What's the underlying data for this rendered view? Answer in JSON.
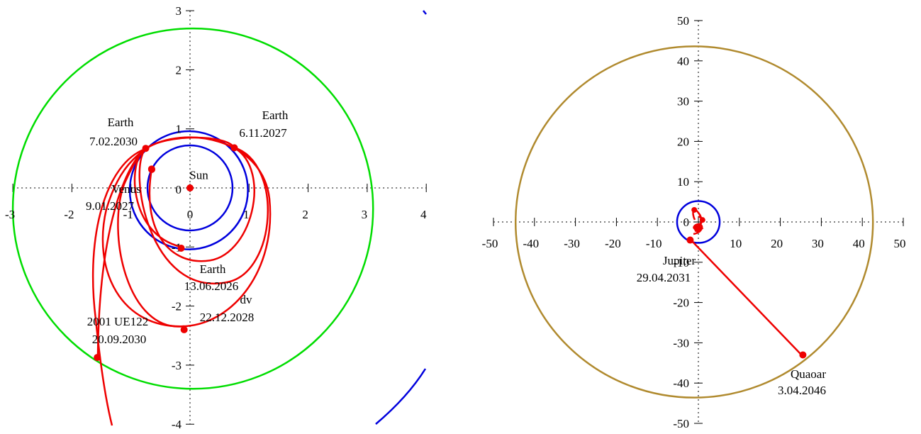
{
  "chart_data": [
    {
      "type": "scatter",
      "title": "",
      "xlabel": "",
      "ylabel": "",
      "xlim": [
        -3,
        4
      ],
      "ylim": [
        -4,
        3
      ],
      "grid": false,
      "colors": {
        "earth_orbit": "#0000dd",
        "venus_orbit": "#0000dd",
        "target_orbit": "#00dd00",
        "trajectory": "#ee0000",
        "far_orbit": "#0000dd"
      },
      "x_ticks": [
        "-3",
        "-2",
        "-1",
        "0",
        "1",
        "2",
        "3",
        "4"
      ],
      "y_ticks": [
        "-4",
        "-3",
        "-2",
        "-1",
        "0",
        "1",
        "2",
        "3"
      ],
      "orbits": [
        {
          "name": "Earth orbit",
          "color": "#0000dd",
          "cx": -0.02,
          "cy": -0.04,
          "r": 1.0
        },
        {
          "name": "Venus orbit",
          "color": "#0000dd",
          "cx": 0.0,
          "cy": 0.0,
          "r": 0.72
        },
        {
          "name": "2001 UE122 orbit",
          "color": "#00dd00",
          "cx": 0.05,
          "cy": -0.35,
          "r": 3.05
        }
      ],
      "points": [
        {
          "id": "sun",
          "x": 0.0,
          "y": 0.0,
          "label_1": "Sun",
          "label_2": ""
        },
        {
          "id": "earth-2030",
          "x": -0.75,
          "y": 0.67,
          "label_1": "Earth",
          "label_2": "7.02.2030"
        },
        {
          "id": "earth-2027",
          "x": 0.75,
          "y": 0.68,
          "label_1": "Earth",
          "label_2": "6.11.2027"
        },
        {
          "id": "venus-2027",
          "x": -0.65,
          "y": 0.32,
          "label_1": "Venus",
          "label_2": "9.01.2027"
        },
        {
          "id": "earth-2026",
          "x": -0.15,
          "y": -1.02,
          "label_1": "Earth",
          "label_2": "13.06.2026"
        },
        {
          "id": "dv-2028",
          "x": -0.1,
          "y": -2.4,
          "label_1": "dv",
          "label_2": "22.12.2028"
        },
        {
          "id": "ue122-2030",
          "x": -1.57,
          "y": -2.87,
          "label_1": "2001 UE122",
          "label_2": "20.09.2030"
        }
      ]
    },
    {
      "type": "scatter",
      "title": "",
      "xlabel": "",
      "ylabel": "",
      "xlim": [
        -50,
        50
      ],
      "ylim": [
        -50,
        50
      ],
      "grid": false,
      "colors": {
        "jupiter_orbit": "#0000dd",
        "quaoar_orbit": "#b08a2e",
        "trajectory": "#ee0000"
      },
      "x_ticks": [
        "-50",
        "-40",
        "-30",
        "-20",
        "-10",
        "0",
        "10",
        "20",
        "30",
        "40",
        "50"
      ],
      "y_ticks": [
        "-50",
        "-40",
        "-30",
        "-20",
        "-10",
        "0",
        "10",
        "20",
        "30",
        "40",
        "50"
      ],
      "orbits": [
        {
          "name": "Jupiter orbit",
          "color": "#0000dd",
          "cx": 0.0,
          "cy": 0.0,
          "r": 5.2
        },
        {
          "name": "Quaoar orbit",
          "color": "#b08a2e",
          "cx": -1.0,
          "cy": 0.0,
          "r": 43.6
        }
      ],
      "points": [
        {
          "id": "jupiter-2031",
          "x": -2.0,
          "y": -4.5,
          "label_1": "Jupiter",
          "label_2": "29.04.2031"
        },
        {
          "id": "quaoar-2046",
          "x": 25.5,
          "y": -33.0,
          "label_1": "Quaoar",
          "label_2": "3.04.2046"
        }
      ]
    }
  ]
}
